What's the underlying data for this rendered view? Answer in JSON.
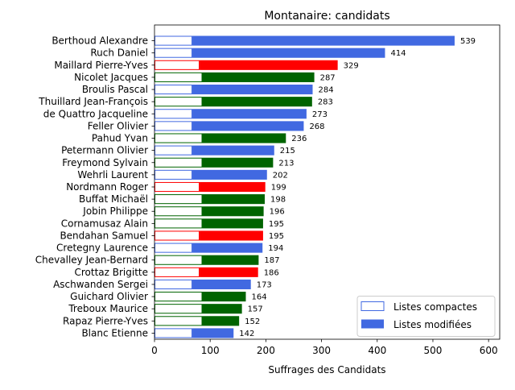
{
  "chart_data": {
    "type": "bar",
    "orientation": "horizontal",
    "stacked": true,
    "title": "Montanaire: candidats",
    "xlabel": "Suffrages des Candidats",
    "ylabel": "",
    "xlim": [
      0,
      620
    ],
    "xticks": [
      "0",
      "100",
      "200",
      "300",
      "400",
      "500",
      "600"
    ],
    "grid": false,
    "legend_position": "lower-right",
    "legend": {
      "compact_label": "Listes compactes",
      "modified_label": "Listes modifiées"
    },
    "candidates": [
      {
        "name": "Berthoud Alexandre",
        "total": 539,
        "compact": 68,
        "color": "#4169e1"
      },
      {
        "name": "Ruch Daniel",
        "total": 414,
        "compact": 68,
        "color": "#4169e1"
      },
      {
        "name": "Maillard Pierre-Yves",
        "total": 329,
        "compact": 81,
        "color": "#ff0000"
      },
      {
        "name": "Nicolet Jacques",
        "total": 287,
        "compact": 86,
        "color": "#006400"
      },
      {
        "name": "Broulis Pascal",
        "total": 284,
        "compact": 68,
        "color": "#4169e1"
      },
      {
        "name": "Thuillard Jean-François",
        "total": 283,
        "compact": 86,
        "color": "#006400"
      },
      {
        "name": "de Quattro Jacqueline",
        "total": 273,
        "compact": 68,
        "color": "#4169e1"
      },
      {
        "name": "Feller Olivier",
        "total": 268,
        "compact": 68,
        "color": "#4169e1"
      },
      {
        "name": "Pahud Yvan",
        "total": 236,
        "compact": 86,
        "color": "#006400"
      },
      {
        "name": "Petermann Olivier",
        "total": 215,
        "compact": 68,
        "color": "#4169e1"
      },
      {
        "name": "Freymond Sylvain",
        "total": 213,
        "compact": 86,
        "color": "#006400"
      },
      {
        "name": "Wehrli Laurent",
        "total": 202,
        "compact": 68,
        "color": "#4169e1"
      },
      {
        "name": "Nordmann Roger",
        "total": 199,
        "compact": 81,
        "color": "#ff0000"
      },
      {
        "name": "Buffat Michaël",
        "total": 198,
        "compact": 86,
        "color": "#006400"
      },
      {
        "name": "Jobin Philippe",
        "total": 196,
        "compact": 86,
        "color": "#006400"
      },
      {
        "name": "Cornamusaz Alain",
        "total": 195,
        "compact": 86,
        "color": "#006400"
      },
      {
        "name": "Bendahan Samuel",
        "total": 195,
        "compact": 81,
        "color": "#ff0000"
      },
      {
        "name": "Cretegny Laurence",
        "total": 194,
        "compact": 68,
        "color": "#4169e1"
      },
      {
        "name": "Chevalley Jean-Bernard",
        "total": 187,
        "compact": 86,
        "color": "#006400"
      },
      {
        "name": "Crottaz Brigitte",
        "total": 186,
        "compact": 81,
        "color": "#ff0000"
      },
      {
        "name": "Aschwanden Sergei",
        "total": 173,
        "compact": 68,
        "color": "#4169e1"
      },
      {
        "name": "Guichard Olivier",
        "total": 164,
        "compact": 86,
        "color": "#006400"
      },
      {
        "name": "Treboux Maurice",
        "total": 157,
        "compact": 86,
        "color": "#006400"
      },
      {
        "name": "Rapaz Pierre-Yves",
        "total": 152,
        "compact": 86,
        "color": "#006400"
      },
      {
        "name": "Blanc Etienne",
        "total": 142,
        "compact": 68,
        "color": "#4169e1"
      }
    ]
  }
}
